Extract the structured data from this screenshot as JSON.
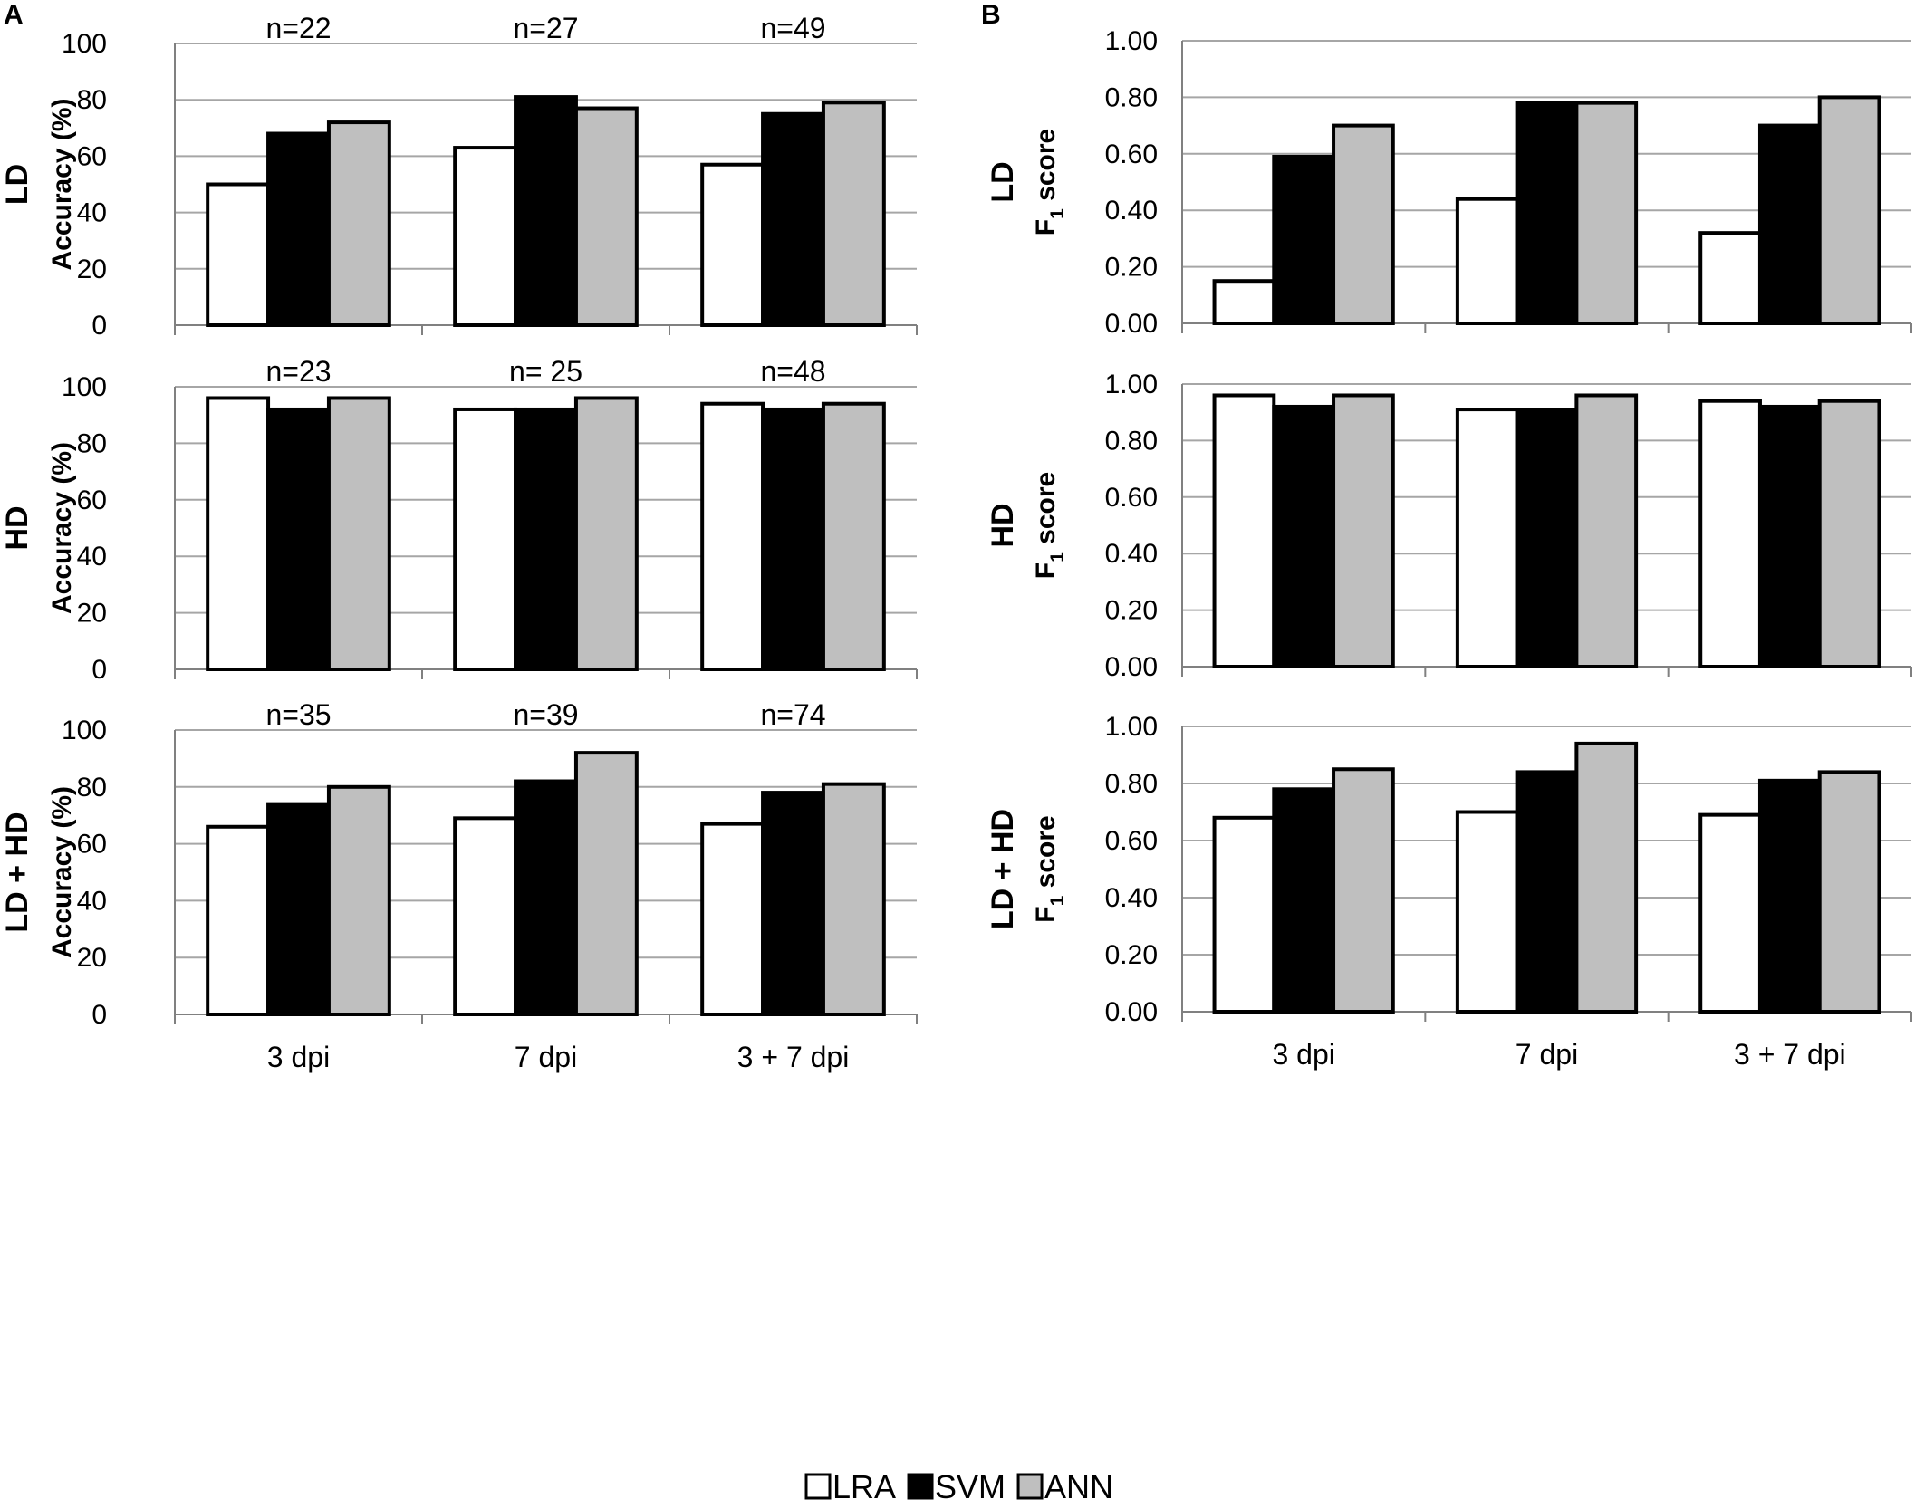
{
  "panel_labels": {
    "a": "A",
    "b": "B"
  },
  "legend": [
    {
      "name": "LRA",
      "color": "#ffffff"
    },
    {
      "name": "SVM",
      "color": "#000000"
    },
    {
      "name": "ANN",
      "color": "#bfbfbf"
    }
  ],
  "colors": {
    "grid": "#a6a6a6",
    "axis": "#808080",
    "bar_stroke": "#000000"
  },
  "chart_data": [
    {
      "id": "A-LD",
      "type": "bar",
      "row_title": "LD",
      "ylabel": "Accuracy (%)",
      "categories": [
        "3 dpi",
        "7 dpi",
        "3 + 7 dpi"
      ],
      "n_labels": [
        "n=22",
        "n=27",
        "n=49"
      ],
      "ylim": [
        0,
        100
      ],
      "yticks": [
        "0",
        "20",
        "40",
        "60",
        "80",
        "100"
      ],
      "show_xlabels": false,
      "series": [
        {
          "name": "LRA",
          "values": [
            50,
            63,
            57
          ]
        },
        {
          "name": "SVM",
          "values": [
            68,
            81,
            75
          ]
        },
        {
          "name": "ANN",
          "values": [
            72,
            77,
            79
          ]
        }
      ]
    },
    {
      "id": "A-HD",
      "type": "bar",
      "row_title": "HD",
      "ylabel": "Accuracy (%)",
      "categories": [
        "3 dpi",
        "7 dpi",
        "3 + 7 dpi"
      ],
      "n_labels": [
        "n=23",
        "n= 25",
        "n=48"
      ],
      "ylim": [
        0,
        100
      ],
      "yticks": [
        "0",
        "20",
        "40",
        "60",
        "80",
        "100"
      ],
      "show_xlabels": false,
      "series": [
        {
          "name": "LRA",
          "values": [
            96,
            92,
            94
          ]
        },
        {
          "name": "SVM",
          "values": [
            92,
            92,
            92
          ]
        },
        {
          "name": "ANN",
          "values": [
            96,
            96,
            94
          ]
        }
      ]
    },
    {
      "id": "A-LDHD",
      "type": "bar",
      "row_title": "LD + HD",
      "ylabel": "Accuracy (%)",
      "categories": [
        "3 dpi",
        "7 dpi",
        "3 + 7 dpi"
      ],
      "n_labels": [
        "n=35",
        "n=39",
        "n=74"
      ],
      "ylim": [
        0,
        100
      ],
      "yticks": [
        "0",
        "20",
        "40",
        "60",
        "80",
        "100"
      ],
      "show_xlabels": true,
      "series": [
        {
          "name": "LRA",
          "values": [
            66,
            69,
            67
          ]
        },
        {
          "name": "SVM",
          "values": [
            74,
            82,
            78
          ]
        },
        {
          "name": "ANN",
          "values": [
            80,
            92,
            81
          ]
        }
      ]
    },
    {
      "id": "B-LD",
      "type": "bar",
      "row_title": "LD",
      "ylabel_main": "F",
      "ylabel_sub": "1",
      "ylabel_rest": " score",
      "categories": [
        "3 dpi",
        "7 dpi",
        "3 + 7 dpi"
      ],
      "n_labels": [],
      "ylim": [
        0,
        1
      ],
      "yticks": [
        "0.00",
        "0.20",
        "0.40",
        "0.60",
        "0.80",
        "1.00"
      ],
      "show_xlabels": false,
      "series": [
        {
          "name": "LRA",
          "values": [
            0.15,
            0.44,
            0.32
          ]
        },
        {
          "name": "SVM",
          "values": [
            0.59,
            0.78,
            0.7
          ]
        },
        {
          "name": "ANN",
          "values": [
            0.7,
            0.78,
            0.8
          ]
        }
      ]
    },
    {
      "id": "B-HD",
      "type": "bar",
      "row_title": "HD",
      "ylabel_main": "F",
      "ylabel_sub": "1",
      "ylabel_rest": " score",
      "categories": [
        "3 dpi",
        "7 dpi",
        "3 + 7 dpi"
      ],
      "n_labels": [],
      "ylim": [
        0,
        1
      ],
      "yticks": [
        "0.00",
        "0.20",
        "0.40",
        "0.60",
        "0.80",
        "1.00"
      ],
      "show_xlabels": false,
      "series": [
        {
          "name": "LRA",
          "values": [
            0.96,
            0.91,
            0.94
          ]
        },
        {
          "name": "SVM",
          "values": [
            0.92,
            0.91,
            0.92
          ]
        },
        {
          "name": "ANN",
          "values": [
            0.96,
            0.96,
            0.94
          ]
        }
      ]
    },
    {
      "id": "B-LDHD",
      "type": "bar",
      "row_title": "LD + HD",
      "ylabel_main": "F",
      "ylabel_sub": "1",
      "ylabel_rest": " score",
      "categories": [
        "3 dpi",
        "7 dpi",
        "3 + 7 dpi"
      ],
      "n_labels": [],
      "ylim": [
        0,
        1
      ],
      "yticks": [
        "0.00",
        "0.20",
        "0.40",
        "0.60",
        "0.80",
        "1.00"
      ],
      "show_xlabels": true,
      "series": [
        {
          "name": "LRA",
          "values": [
            0.68,
            0.7,
            0.69
          ]
        },
        {
          "name": "SVM",
          "values": [
            0.78,
            0.84,
            0.81
          ]
        },
        {
          "name": "ANN",
          "values": [
            0.85,
            0.94,
            0.84
          ]
        }
      ]
    }
  ]
}
